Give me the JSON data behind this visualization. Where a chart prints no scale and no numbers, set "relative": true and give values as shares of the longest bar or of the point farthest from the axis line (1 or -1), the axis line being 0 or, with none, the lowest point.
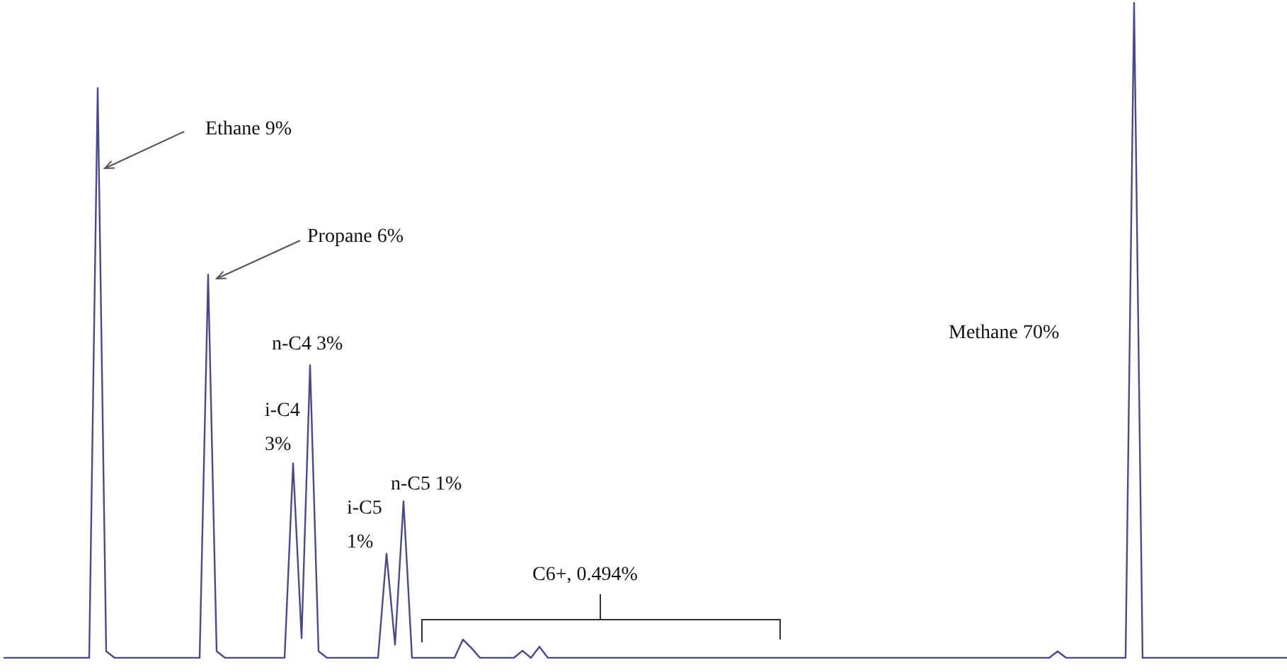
{
  "chart_data": {
    "type": "line",
    "relative": true,
    "categories": [
      null,
      null,
      null,
      null,
      null,
      null,
      null,
      null,
      null,
      null,
      null,
      null,
      null,
      null,
      null,
      null,
      null,
      null,
      null,
      null,
      null,
      null,
      null,
      null,
      null,
      null,
      null,
      null,
      null,
      null,
      null,
      null,
      null,
      null,
      null,
      null,
      null,
      null,
      null,
      null,
      null,
      null,
      null,
      null,
      null,
      null,
      null,
      null,
      null,
      null,
      null,
      null,
      null,
      null,
      null,
      null,
      null,
      null,
      null,
      null,
      null,
      null,
      null,
      null,
      null,
      null,
      null,
      null,
      null,
      null,
      null,
      null,
      null,
      null,
      null,
      null,
      null,
      null,
      null,
      null,
      null,
      null,
      null,
      null,
      null,
      null,
      null,
      null,
      null,
      null,
      null,
      null,
      null,
      null,
      null,
      null,
      null,
      null,
      null,
      null,
      null,
      null,
      null,
      null,
      null,
      null,
      null,
      null,
      null,
      null,
      null,
      null,
      null,
      null,
      null,
      null,
      null,
      null,
      null,
      null,
      null,
      null,
      null,
      null,
      null,
      null,
      null,
      null,
      null,
      null,
      null,
      null,
      null,
      null,
      null,
      null,
      null,
      null,
      null,
      null,
      null,
      null,
      null,
      null,
      null,
      null,
      null,
      null,
      null,
      null,
      null,
      null
    ],
    "series": [
      {
        "color": "#4a4a86",
        "values": [
          0,
          0,
          0,
          0,
          0,
          0,
          0,
          0,
          0,
          0,
          0,
          0.87,
          0.01,
          0,
          0,
          0,
          0,
          0,
          0,
          0,
          0,
          0,
          0,
          0,
          0.585,
          0.01,
          0,
          0,
          0,
          0,
          0,
          0,
          0,
          0,
          0.297,
          0.03,
          0.447,
          0.01,
          0,
          0,
          0,
          0,
          0,
          0,
          0,
          0.159,
          0.02,
          0.239,
          0,
          0,
          0,
          0,
          0,
          0,
          0.028,
          0.015,
          0,
          0,
          0,
          0,
          0,
          0.011,
          0,
          0.017,
          0,
          0,
          0,
          0,
          0,
          0,
          0,
          0,
          0,
          0,
          0,
          0,
          0,
          0,
          0,
          0,
          0,
          0,
          0,
          0,
          0,
          0,
          0,
          0,
          0,
          0,
          0,
          0,
          0,
          0,
          0,
          0,
          0,
          0,
          0,
          0,
          0,
          0,
          0,
          0,
          0,
          0,
          0,
          0,
          0,
          0,
          0,
          0,
          0,
          0,
          0,
          0,
          0,
          0,
          0,
          0,
          0,
          0,
          0,
          0,
          0.01,
          0,
          0,
          0,
          0,
          0,
          0,
          0,
          0,
          1,
          0,
          0,
          0,
          0,
          0,
          0,
          0,
          0,
          0,
          0,
          0,
          0,
          0,
          0,
          0,
          0,
          0,
          0
        ]
      }
    ],
    "annotations": [
      "Ethane 9%",
      "Propane 6%",
      "n-C4 3%",
      "i-C4 3%",
      "i-C5 1%",
      "n-C5 1%",
      "C6+, 0.494%",
      "Methane 70%"
    ]
  }
}
